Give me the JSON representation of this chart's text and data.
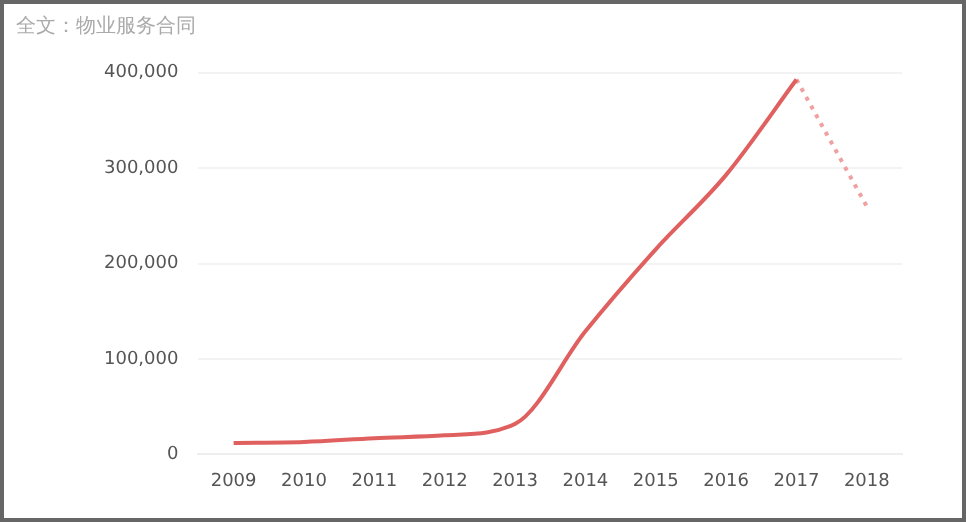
{
  "chart_data": {
    "type": "line",
    "title": "全文：物业服务合同",
    "categories": [
      "2009",
      "2010",
      "2011",
      "2012",
      "2013",
      "2014",
      "2015",
      "2016",
      "2017",
      "2018"
    ],
    "series": [
      {
        "color": "#e06060",
        "line_style": "solid",
        "values": [
          12000,
          13000,
          17000,
          20000,
          32000,
          129000,
          215000,
          293000,
          393000,
          null
        ]
      },
      {
        "color": "#f0a0a0",
        "line_style": "dotted",
        "values": [
          null,
          null,
          null,
          null,
          null,
          null,
          null,
          null,
          393000,
          260000
        ]
      }
    ],
    "ylim": [
      0,
      400000
    ],
    "yticks": [
      0,
      {
        "value": 100000,
        "label": "100,000"
      },
      {
        "value": 200000,
        "label": "200,000"
      },
      {
        "value": 300000,
        "label": "300,000"
      },
      {
        "value": 400000,
        "label": "400,000"
      }
    ],
    "grid": "y",
    "legend": false,
    "marker": "none"
  }
}
